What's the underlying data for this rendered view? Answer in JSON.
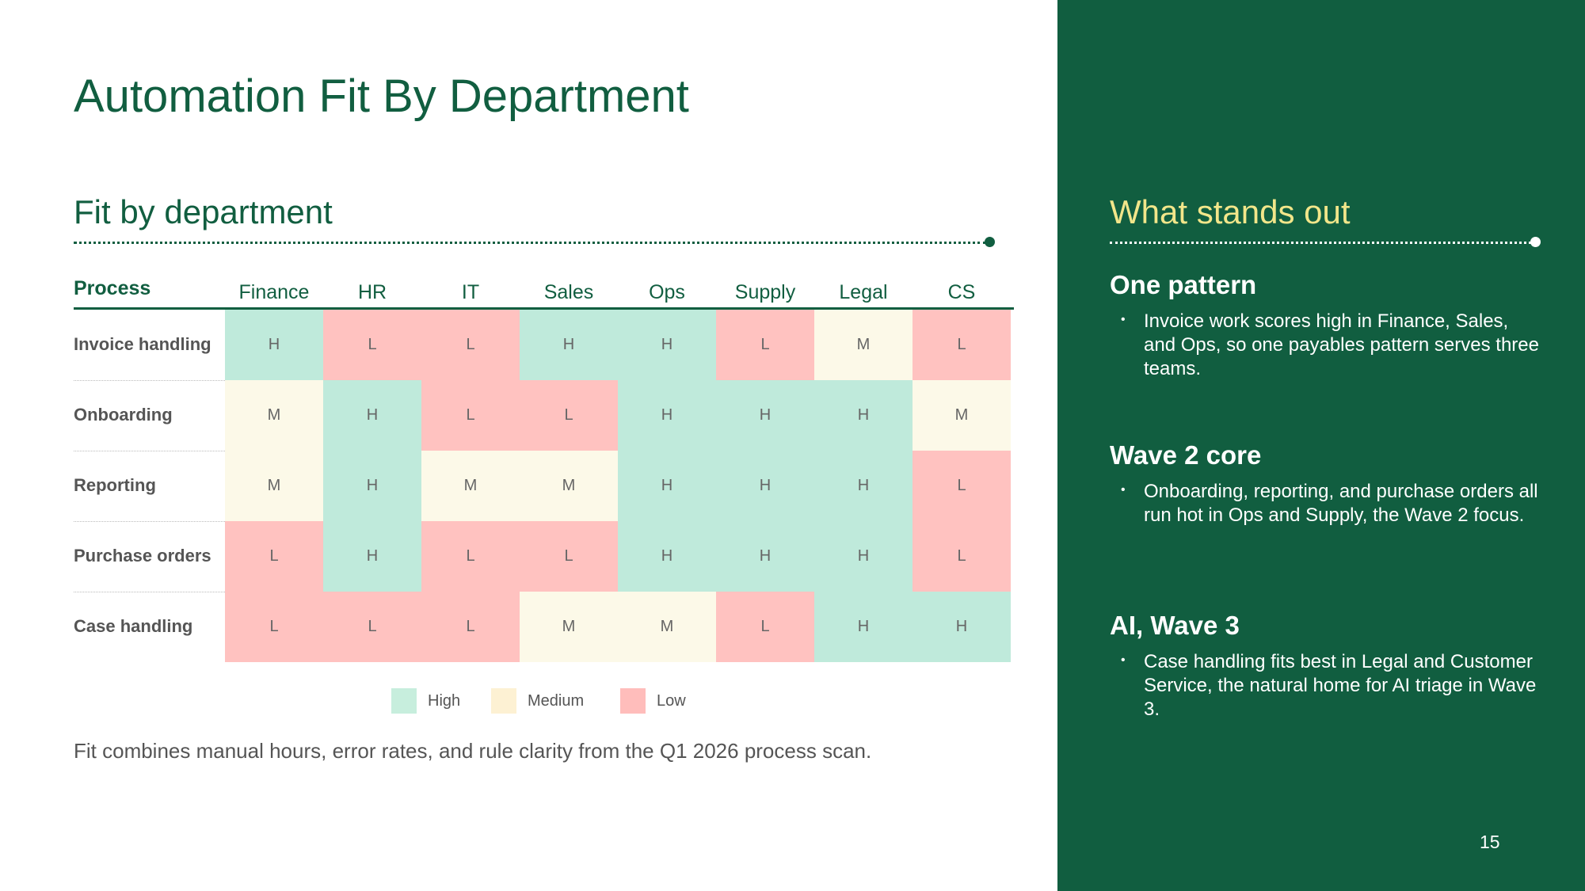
{
  "title": "Automation Fit By Department",
  "section_title": "Fit by department",
  "table": {
    "process_header": "Process",
    "columns": [
      "Finance",
      "HR",
      "IT",
      "Sales",
      "Ops",
      "Supply",
      "Legal",
      "CS"
    ],
    "rows": [
      {
        "label": "Invoice handling",
        "cells": [
          "H",
          "L",
          "L",
          "H",
          "H",
          "L",
          "M",
          "L"
        ]
      },
      {
        "label": "Onboarding",
        "cells": [
          "M",
          "H",
          "L",
          "L",
          "H",
          "H",
          "H",
          "M"
        ]
      },
      {
        "label": "Reporting",
        "cells": [
          "M",
          "H",
          "M",
          "M",
          "H",
          "H",
          "H",
          "L"
        ]
      },
      {
        "label": "Purchase orders",
        "cells": [
          "L",
          "H",
          "L",
          "L",
          "H",
          "H",
          "H",
          "L"
        ]
      },
      {
        "label": "Case handling",
        "cells": [
          "L",
          "L",
          "L",
          "M",
          "M",
          "L",
          "H",
          "H"
        ]
      }
    ]
  },
  "colors": {
    "accent": "#115e40",
    "highlight": "#f2e68a",
    "H": "#bfeadb",
    "M": "#fcf9e8",
    "L": "#ffc2c0",
    "legend_H": "#c7eedd",
    "legend_M": "#fdf1d3",
    "legend_L": "#ffbdbb"
  },
  "legend": [
    {
      "key": "H",
      "label": "High"
    },
    {
      "key": "M",
      "label": "Medium"
    },
    {
      "key": "L",
      "label": "Low"
    }
  ],
  "footnote": "Fit combines manual hours, error rates, and rule clarity from the Q1 2026 process scan.",
  "sidebar": {
    "title": "What stands out",
    "insights": [
      {
        "heading": "One pattern",
        "body": "Invoice work scores high in Finance, Sales, and Ops, so one payables pattern serves three teams."
      },
      {
        "heading": "Wave 2 core",
        "body": "Onboarding, reporting, and purchase orders all run hot in Ops and Supply, the Wave 2 focus."
      },
      {
        "heading": "AI, Wave 3",
        "body": "Case handling fits best in Legal and Customer Service, the natural home for AI triage in Wave 3."
      }
    ],
    "bullet": "•",
    "page_number": "15"
  }
}
